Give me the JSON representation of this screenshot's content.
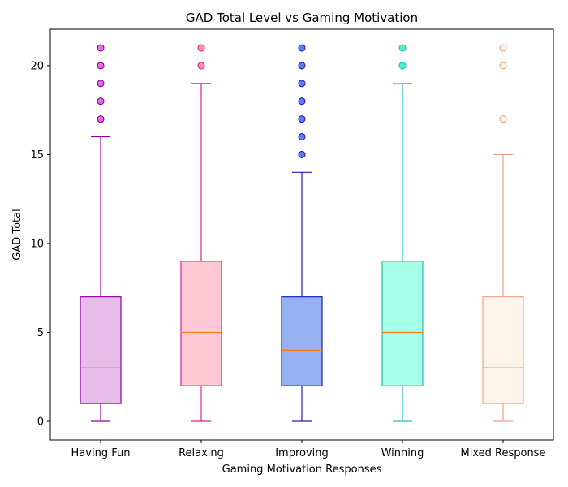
{
  "chart_data": {
    "type": "box",
    "title": "GAD Total Level vs Gaming Motivation",
    "xlabel": "Gaming Motivation Responses",
    "ylabel": "GAD Total",
    "ylim": [
      -1.05,
      22.05
    ],
    "yticks": [
      0,
      5,
      10,
      15,
      20
    ],
    "grid": false,
    "categories": [
      "Having Fun",
      "Relaxing",
      "Improving",
      "Winning",
      "Mixed Response"
    ],
    "boxes": [
      {
        "category": "Having Fun",
        "whisker_low": 0,
        "q1": 1,
        "median": 3,
        "q3": 7,
        "whisker_high": 16,
        "outliers": [
          17,
          18,
          19,
          20,
          21
        ],
        "fill": "#e6bce8",
        "edge": "#9400a0",
        "median_color": "#ff7f0e",
        "flier_face": "#e070e0",
        "flier_edge": "#9400a0"
      },
      {
        "category": "Relaxing",
        "whisker_low": 0,
        "q1": 2,
        "median": 5,
        "q3": 9,
        "whisker_high": 19,
        "outliers": [
          20,
          21
        ],
        "fill": "#ffc8d4",
        "edge": "#d4249a",
        "median_color": "#ff7f0e",
        "flier_face": "#ff90b8",
        "flier_edge": "#d4249a"
      },
      {
        "category": "Improving",
        "whisker_low": 0,
        "q1": 2,
        "median": 4,
        "q3": 7,
        "whisker_high": 14,
        "outliers": [
          15,
          16,
          17,
          18,
          19,
          20,
          21
        ],
        "fill": "#96b2f2",
        "edge": "#1f20c0",
        "median_color": "#ff7f0e",
        "flier_face": "#5a7ef0",
        "flier_edge": "#1f20c0"
      },
      {
        "category": "Winning",
        "whisker_low": 0,
        "q1": 2,
        "median": 5,
        "q3": 9,
        "whisker_high": 19,
        "outliers": [
          20,
          21
        ],
        "fill": "#a6ffe6",
        "edge": "#20c0b0",
        "median_color": "#ff7f0e",
        "flier_face": "#50f0c8",
        "flier_edge": "#20c0b0"
      },
      {
        "category": "Mixed Response",
        "whisker_low": 0,
        "q1": 1,
        "median": 3,
        "q3": 7,
        "whisker_high": 15,
        "outliers": [
          17,
          20,
          21
        ],
        "fill": "#fff4ea",
        "edge": "#f0a088",
        "median_color": "#ff7f0e",
        "flier_face": "#fff4ea",
        "flier_edge": "#f0a088"
      }
    ]
  }
}
